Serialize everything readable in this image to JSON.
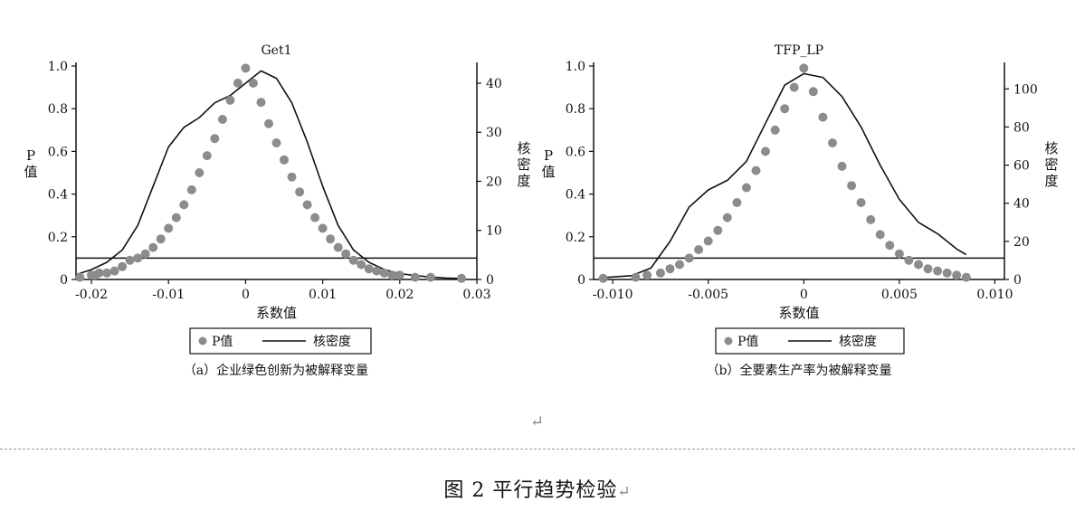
{
  "figure_caption": "图 2 平行趋势检验",
  "return_mark": "↵",
  "chart_data": [
    {
      "type": "scatter",
      "panel_label": "（a）企业绿色创新为被解释变量",
      "title": "Get1",
      "xlabel": "系数值",
      "ylabel_left": "P值",
      "ylabel_right": "核密度",
      "xlim": [
        -0.022,
        0.03
      ],
      "ylim_left": [
        0,
        1.0
      ],
      "ylim_right": [
        0,
        43.5
      ],
      "xticks": [
        -0.02,
        -0.01,
        0,
        0.01,
        0.02,
        0.03
      ],
      "xtick_labels": [
        "-0.02",
        "-0.01",
        "0",
        "0.01",
        "0.02",
        "0.03"
      ],
      "yticks_left": [
        0,
        0.2,
        0.4,
        0.6,
        0.8,
        1.0
      ],
      "ytick_labels_left": [
        "0",
        "0.2",
        "0.4",
        "0.6",
        "0.8",
        "1.0"
      ],
      "yticks_right": [
        0,
        10,
        20,
        30,
        40
      ],
      "ytick_labels_right": [
        "0",
        "10",
        "20",
        "30",
        "40"
      ],
      "reference_line_p": 0.1,
      "legend": [
        "P值",
        "核密度"
      ],
      "legend_position": "bottom",
      "colors": {
        "points": "#8c8c8c",
        "density": "#111111"
      },
      "pvalue_points": {
        "x": [
          -0.0215,
          -0.02,
          -0.0195,
          -0.019,
          -0.018,
          -0.017,
          -0.016,
          -0.015,
          -0.014,
          -0.013,
          -0.012,
          -0.011,
          -0.01,
          -0.009,
          -0.008,
          -0.007,
          -0.006,
          -0.005,
          -0.004,
          -0.003,
          -0.002,
          -0.001,
          0,
          0.001,
          0.002,
          0.003,
          0.004,
          0.005,
          0.006,
          0.007,
          0.008,
          0.009,
          0.01,
          0.011,
          0.012,
          0.013,
          0.014,
          0.015,
          0.016,
          0.017,
          0.018,
          0.019,
          0.02,
          0.022,
          0.024,
          0.028
        ],
        "y": [
          0.01,
          0.02,
          0.02,
          0.03,
          0.03,
          0.04,
          0.06,
          0.09,
          0.1,
          0.12,
          0.15,
          0.19,
          0.24,
          0.29,
          0.35,
          0.42,
          0.5,
          0.58,
          0.66,
          0.75,
          0.84,
          0.92,
          0.99,
          0.92,
          0.83,
          0.73,
          0.64,
          0.56,
          0.48,
          0.41,
          0.35,
          0.29,
          0.24,
          0.19,
          0.15,
          0.12,
          0.09,
          0.07,
          0.05,
          0.04,
          0.03,
          0.02,
          0.02,
          0.01,
          0.01,
          0.005
        ]
      },
      "density_curve": {
        "x": [
          -0.022,
          -0.02,
          -0.018,
          -0.016,
          -0.014,
          -0.012,
          -0.01,
          -0.008,
          -0.006,
          -0.004,
          -0.002,
          0,
          0.002,
          0.004,
          0.006,
          0.008,
          0.01,
          0.012,
          0.014,
          0.016,
          0.018,
          0.02,
          0.022,
          0.024,
          0.026,
          0.028
        ],
        "y": [
          1,
          2,
          3.5,
          6,
          11,
          19,
          27,
          31,
          33,
          36,
          37.5,
          40,
          42.5,
          41,
          36,
          28,
          19,
          11,
          6,
          3.5,
          2,
          1.2,
          0.8,
          0.5,
          0.3,
          0.2
        ]
      }
    },
    {
      "type": "scatter",
      "panel_label": "（b）全要素生产率为被解释变量",
      "title": "TFP_LP",
      "xlabel": "系数值",
      "ylabel_left": "P值",
      "ylabel_right": "核密度",
      "xlim": [
        -0.011,
        0.0105
      ],
      "ylim_left": [
        0,
        1.0
      ],
      "ylim_right": [
        0,
        112
      ],
      "xticks": [
        -0.01,
        -0.005,
        0,
        0.005,
        0.01
      ],
      "xtick_labels": [
        "-0.010",
        "-0.005",
        "0",
        "0.005",
        "0.010"
      ],
      "yticks_left": [
        0,
        0.2,
        0.4,
        0.6,
        0.8,
        1.0
      ],
      "ytick_labels_left": [
        "0",
        "0.2",
        "0.4",
        "0.6",
        "0.8",
        "1.0"
      ],
      "yticks_right": [
        0,
        20,
        40,
        60,
        80,
        100
      ],
      "ytick_labels_right": [
        "0",
        "20",
        "40",
        "60",
        "80",
        "100"
      ],
      "reference_line_p": 0.1,
      "legend": [
        "P值",
        "核密度"
      ],
      "legend_position": "bottom",
      "colors": {
        "points": "#8c8c8c",
        "density": "#111111"
      },
      "pvalue_points": {
        "x": [
          -0.0105,
          -0.0088,
          -0.0082,
          -0.0075,
          -0.007,
          -0.0065,
          -0.006,
          -0.0055,
          -0.005,
          -0.0045,
          -0.004,
          -0.0035,
          -0.003,
          -0.0025,
          -0.002,
          -0.0015,
          -0.001,
          -0.0005,
          0,
          0.0005,
          0.001,
          0.0015,
          0.002,
          0.0025,
          0.003,
          0.0035,
          0.004,
          0.0045,
          0.005,
          0.0055,
          0.006,
          0.0065,
          0.007,
          0.0075,
          0.008,
          0.0085
        ],
        "y": [
          0.005,
          0.01,
          0.02,
          0.03,
          0.05,
          0.07,
          0.1,
          0.14,
          0.18,
          0.23,
          0.29,
          0.36,
          0.43,
          0.51,
          0.6,
          0.7,
          0.8,
          0.9,
          0.99,
          0.88,
          0.76,
          0.64,
          0.53,
          0.44,
          0.36,
          0.28,
          0.21,
          0.16,
          0.12,
          0.09,
          0.07,
          0.05,
          0.04,
          0.03,
          0.02,
          0.01
        ]
      },
      "density_curve": {
        "x": [
          -0.0105,
          -0.009,
          -0.008,
          -0.007,
          -0.006,
          -0.005,
          -0.004,
          -0.003,
          -0.002,
          -0.001,
          0,
          0.001,
          0.002,
          0.003,
          0.004,
          0.005,
          0.006,
          0.007,
          0.008,
          0.0085
        ],
        "y": [
          1,
          2,
          6,
          20,
          38,
          47,
          52,
          62,
          82,
          102,
          108,
          106,
          96,
          80,
          60,
          42,
          30,
          24,
          16,
          13
        ]
      }
    }
  ]
}
